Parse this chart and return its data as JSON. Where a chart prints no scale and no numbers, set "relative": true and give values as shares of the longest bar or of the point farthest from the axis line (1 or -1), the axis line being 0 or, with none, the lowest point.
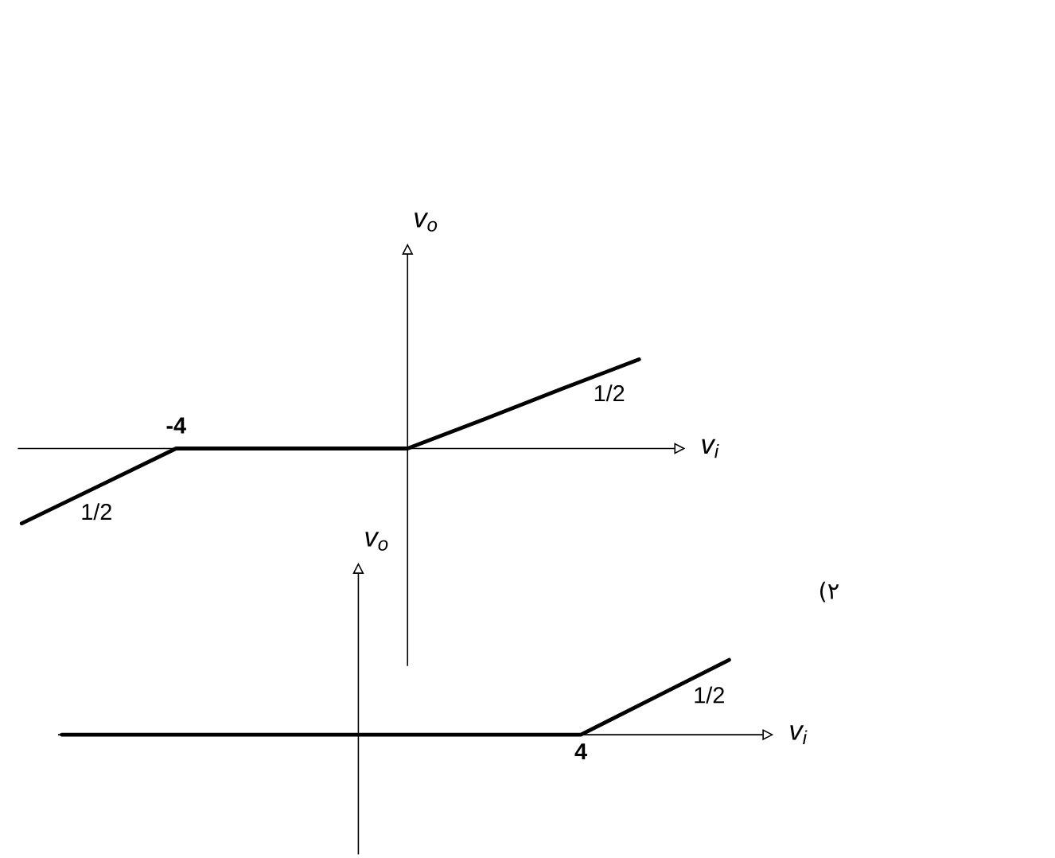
{
  "chart_data": [
    {
      "type": "line",
      "relative": true,
      "xlabel": "v$_{i}$",
      "ylabel": "v$_{o}$",
      "categories": [
        null,
        null,
        null,
        null,
        null,
        null,
        null,
        null,
        null
      ],
      "values": [
        -0.84,
        -0.42,
        0,
        0,
        0,
        0,
        0.33,
        0.67,
        1
      ],
      "color": "#000000",
      "annotations": [
        {
          "text": "1/2",
          "y": 0.78
        },
        {
          "text": "1/2",
          "y": -0.55
        },
        "-4"
      ]
    },
    {
      "type": "line",
      "relative": true,
      "xlabel": "v$_{i}$",
      "ylabel": "v$_{o}$",
      "categories": [
        null,
        null,
        null,
        null,
        null,
        null,
        null,
        null,
        null,
        null
      ],
      "values": [
        0,
        0,
        0,
        0,
        0,
        0,
        0,
        0,
        0.5,
        1
      ],
      "color": "#000000",
      "annotations": [
        {
          "text": "1/2",
          "y": 0.72
        },
        "(۲",
        "4"
      ]
    }
  ]
}
